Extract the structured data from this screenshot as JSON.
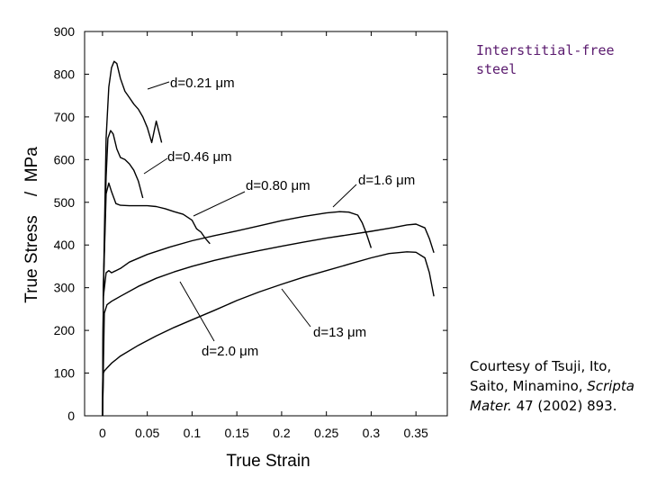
{
  "annotations": {
    "material": "Interstitial-free steel",
    "credit_prefix": "Courtesy of Tsuji, Ito, Saito, Minamino, ",
    "credit_journal": "Scripta Mater.",
    "credit_suffix": " 47 (2002) 893."
  },
  "chart_data": {
    "type": "line",
    "title": "",
    "xlabel": "True Strain",
    "ylabel": "True Stress    /  MPa",
    "xlim": [
      -0.02,
      0.385
    ],
    "ylim": [
      0,
      900
    ],
    "xticks": [
      0,
      0.05,
      0.1,
      0.15,
      0.2,
      0.25,
      0.3,
      0.35
    ],
    "xtick_labels": [
      "0",
      "0.05",
      "0.1",
      "0.15",
      "0.2",
      "0.25",
      "0.3",
      "0.35"
    ],
    "yticks": [
      0,
      100,
      200,
      300,
      400,
      500,
      600,
      700,
      800,
      900
    ],
    "ytick_labels": [
      "0",
      "100",
      "200",
      "300",
      "400",
      "500",
      "600",
      "700",
      "800",
      "900"
    ],
    "grid": false,
    "legend": "none",
    "line_color": "#000000",
    "series": [
      {
        "name": "d=0.21 μm",
        "label": "d=0.21 μm",
        "x": [
          0,
          0.001,
          0.004,
          0.007,
          0.01,
          0.013,
          0.016,
          0.02,
          0.025,
          0.03,
          0.035,
          0.04,
          0.045,
          0.05,
          0.055,
          0.06,
          0.066
        ],
        "y": [
          0,
          300,
          650,
          770,
          815,
          830,
          825,
          790,
          760,
          745,
          730,
          718,
          700,
          675,
          640,
          690,
          640
        ]
      },
      {
        "name": "d=0.46 μm",
        "label": "d=0.46 μm",
        "x": [
          0,
          0.001,
          0.004,
          0.006,
          0.009,
          0.012,
          0.016,
          0.02,
          0.025,
          0.03,
          0.035,
          0.04,
          0.045
        ],
        "y": [
          0,
          300,
          560,
          650,
          668,
          660,
          625,
          605,
          600,
          590,
          575,
          550,
          510
        ]
      },
      {
        "name": "d=0.80 μm",
        "label": "d=0.80 μm",
        "x": [
          0,
          0.001,
          0.004,
          0.007,
          0.01,
          0.015,
          0.02,
          0.03,
          0.04,
          0.05,
          0.06,
          0.07,
          0.08,
          0.09,
          0.1,
          0.105,
          0.11,
          0.115,
          0.12
        ],
        "y": [
          0,
          300,
          520,
          545,
          525,
          497,
          493,
          492,
          492,
          492,
          490,
          485,
          478,
          472,
          458,
          438,
          430,
          415,
          403
        ]
      },
      {
        "name": "d=1.6 μm",
        "label": "d=1.6 μm",
        "x": [
          0,
          0.001,
          0.004,
          0.007,
          0.01,
          0.015,
          0.02,
          0.03,
          0.05,
          0.075,
          0.1,
          0.125,
          0.15,
          0.175,
          0.2,
          0.225,
          0.25,
          0.265,
          0.275,
          0.285,
          0.29,
          0.295,
          0.3
        ],
        "y": [
          0,
          280,
          335,
          340,
          335,
          340,
          345,
          360,
          378,
          395,
          410,
          422,
          433,
          445,
          457,
          467,
          475,
          478,
          477,
          470,
          452,
          425,
          393
        ]
      },
      {
        "name": "d=2.0 μm",
        "label": "d=2.0 μm",
        "x": [
          0,
          0.002,
          0.005,
          0.01,
          0.02,
          0.04,
          0.06,
          0.08,
          0.1,
          0.125,
          0.15,
          0.175,
          0.2,
          0.225,
          0.25,
          0.275,
          0.3,
          0.325,
          0.34,
          0.35,
          0.36,
          0.365,
          0.37
        ],
        "y": [
          0,
          240,
          260,
          268,
          280,
          303,
          322,
          337,
          350,
          364,
          376,
          387,
          397,
          407,
          416,
          424,
          432,
          441,
          447,
          449,
          440,
          415,
          382
        ]
      },
      {
        "name": "d=13 μm",
        "label": "d=13 μm",
        "x": [
          0,
          0.001,
          0.002,
          0.005,
          0.01,
          0.02,
          0.04,
          0.06,
          0.08,
          0.1,
          0.125,
          0.15,
          0.175,
          0.2,
          0.225,
          0.25,
          0.275,
          0.3,
          0.32,
          0.34,
          0.35,
          0.36,
          0.365,
          0.37
        ],
        "y": [
          0,
          100,
          105,
          112,
          123,
          140,
          165,
          187,
          207,
          225,
          247,
          270,
          290,
          308,
          325,
          340,
          355,
          370,
          380,
          384,
          383,
          370,
          335,
          280
        ]
      }
    ]
  }
}
